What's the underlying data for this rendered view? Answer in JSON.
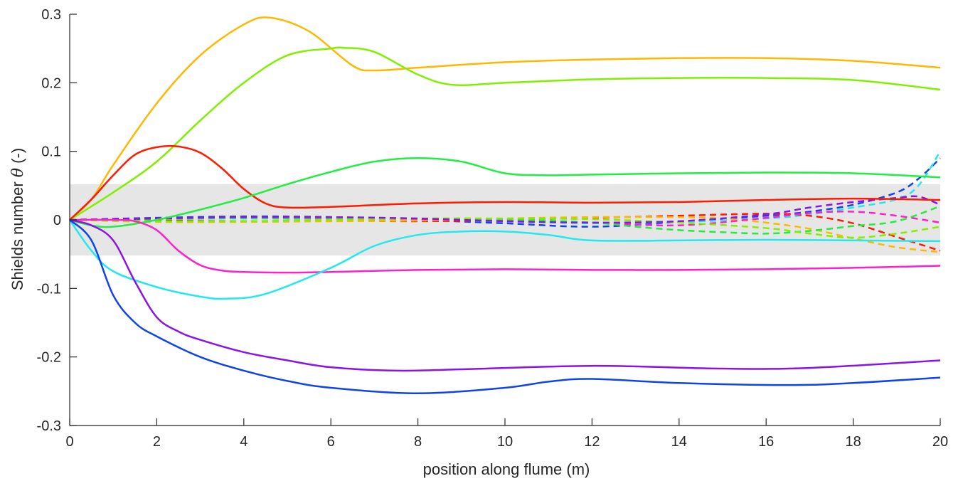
{
  "chart_data": {
    "type": "line",
    "xlabel": "position along flume (m)",
    "ylabel_prefix": "Shields number ",
    "ylabel_symbol": "θ",
    "ylabel_suffix": " (-)",
    "xlim": [
      0,
      20
    ],
    "ylim": [
      -0.3,
      0.3
    ],
    "xticks": [
      0,
      2,
      4,
      6,
      8,
      10,
      12,
      14,
      16,
      18,
      20
    ],
    "yticks": [
      -0.3,
      -0.2,
      -0.1,
      0,
      0.1,
      0.2,
      0.3
    ],
    "xtick_labels": [
      "0",
      "2",
      "4",
      "6",
      "8",
      "10",
      "12",
      "14",
      "16",
      "18",
      "20"
    ],
    "ytick_labels": [
      "-0.3",
      "-0.2",
      "-0.1",
      "0",
      "0.1",
      "0.2",
      "0.3"
    ],
    "grid": false,
    "shaded_band": {
      "y_low": -0.052,
      "y_high": 0.052,
      "color": "#e6e6e6"
    },
    "series": [
      {
        "color": "#ffb800",
        "style": "solid",
        "x": [
          0,
          0.5,
          1,
          2,
          3,
          4,
          4.6,
          5.5,
          6.5,
          7,
          8,
          10,
          12,
          14,
          16,
          18,
          20
        ],
        "y": [
          0,
          0.03,
          0.08,
          0.17,
          0.24,
          0.285,
          0.295,
          0.275,
          0.225,
          0.218,
          0.222,
          0.23,
          0.234,
          0.236,
          0.236,
          0.232,
          0.222
        ]
      },
      {
        "color": "#80f000",
        "style": "solid",
        "x": [
          0,
          1,
          2,
          3,
          4,
          5,
          6,
          6.3,
          7,
          8,
          8.8,
          10,
          12,
          14,
          16,
          18,
          20
        ],
        "y": [
          0,
          0.04,
          0.085,
          0.145,
          0.2,
          0.24,
          0.25,
          0.251,
          0.245,
          0.212,
          0.197,
          0.2,
          0.205,
          0.207,
          0.207,
          0.204,
          0.19
        ]
      },
      {
        "color": "#ff1a00",
        "style": "solid",
        "x": [
          0,
          0.5,
          1,
          1.5,
          2,
          2.5,
          3,
          3.5,
          4,
          4.5,
          5,
          6,
          8,
          10,
          12,
          14,
          16,
          18,
          20
        ],
        "y": [
          0,
          0.03,
          0.065,
          0.095,
          0.106,
          0.107,
          0.098,
          0.075,
          0.045,
          0.024,
          0.018,
          0.019,
          0.024,
          0.026,
          0.025,
          0.026,
          0.029,
          0.031,
          0.029
        ]
      },
      {
        "color": "#20ee40",
        "style": "solid",
        "x": [
          0,
          0.5,
          1,
          2,
          3,
          4,
          5,
          6,
          7,
          8,
          9,
          10,
          11,
          12,
          14,
          16,
          18,
          20
        ],
        "y": [
          0,
          -0.008,
          -0.01,
          0,
          0.015,
          0.032,
          0.052,
          0.07,
          0.085,
          0.09,
          0.085,
          0.068,
          0.065,
          0.066,
          0.068,
          0.069,
          0.068,
          0.062
        ]
      },
      {
        "color": "#ff20c8",
        "style": "solid",
        "x": [
          0,
          1,
          1.5,
          2,
          2.5,
          3,
          3.5,
          4,
          5,
          6,
          8,
          10,
          12,
          14,
          16,
          18,
          20
        ],
        "y": [
          0,
          0,
          -0.002,
          -0.015,
          -0.045,
          -0.066,
          -0.074,
          -0.076,
          -0.077,
          -0.076,
          -0.073,
          -0.072,
          -0.073,
          -0.073,
          -0.072,
          -0.07,
          -0.067
        ]
      },
      {
        "color": "#22e8f0",
        "style": "solid",
        "x": [
          0,
          0.5,
          1,
          2,
          3,
          3.6,
          4.5,
          6,
          7,
          8,
          9,
          10,
          11,
          12,
          14,
          16,
          18,
          20
        ],
        "y": [
          0,
          -0.045,
          -0.075,
          -0.098,
          -0.112,
          -0.115,
          -0.108,
          -0.07,
          -0.038,
          -0.022,
          -0.017,
          -0.017,
          -0.022,
          -0.03,
          -0.03,
          -0.029,
          -0.03,
          -0.031
        ]
      },
      {
        "color": "#8a14e8",
        "style": "solid",
        "x": [
          0,
          0.5,
          1,
          1.5,
          2,
          2.5,
          3,
          4,
          5,
          6,
          7.5,
          9,
          12,
          15,
          17,
          20
        ],
        "y": [
          0,
          -0.008,
          -0.03,
          -0.09,
          -0.142,
          -0.163,
          -0.175,
          -0.193,
          -0.205,
          -0.215,
          -0.22,
          -0.218,
          -0.213,
          -0.217,
          -0.216,
          -0.205
        ]
      },
      {
        "color": "#1044e8",
        "style": "solid",
        "x": [
          0,
          0.5,
          1,
          1.5,
          2,
          3,
          4,
          5,
          6,
          8,
          10,
          11,
          12,
          14,
          16.5,
          18,
          20
        ],
        "y": [
          0,
          -0.03,
          -0.11,
          -0.15,
          -0.17,
          -0.2,
          -0.22,
          -0.235,
          -0.245,
          -0.253,
          -0.245,
          -0.236,
          -0.232,
          -0.238,
          -0.241,
          -0.238,
          -0.23
        ]
      },
      {
        "color": "#1044e8",
        "style": "dashed",
        "x": [
          0,
          2,
          4,
          6,
          8,
          10,
          12,
          14,
          16,
          17,
          18,
          19,
          19.5,
          20
        ],
        "y": [
          0,
          0.003,
          0.005,
          0.004,
          0,
          -0.005,
          -0.01,
          -0.003,
          0.006,
          0.012,
          0.022,
          0.04,
          0.06,
          0.09
        ]
      },
      {
        "color": "#22e8f0",
        "style": "dashed",
        "x": [
          0,
          2,
          4,
          6,
          8,
          10,
          12,
          14,
          16,
          17,
          18,
          19,
          19.5,
          20
        ],
        "y": [
          0,
          0.001,
          0.002,
          0.001,
          0,
          -0.002,
          -0.005,
          -0.003,
          0.002,
          0.008,
          0.018,
          0.03,
          0.05,
          0.1
        ]
      },
      {
        "color": "#ff1a00",
        "style": "dashed",
        "x": [
          0,
          2,
          4,
          6,
          8,
          10,
          12,
          14,
          16,
          17,
          18,
          19,
          20
        ],
        "y": [
          0,
          -0.001,
          -0.002,
          -0.001,
          -0.002,
          0,
          0.003,
          0.006,
          0.009,
          0.006,
          -0.005,
          -0.025,
          -0.045
        ]
      },
      {
        "color": "#ffb800",
        "style": "dashed",
        "x": [
          0,
          2,
          4,
          6,
          8,
          10,
          12,
          14,
          15,
          16,
          17,
          18,
          19,
          20
        ],
        "y": [
          0,
          -0.003,
          -0.003,
          -0.002,
          -0.001,
          0.002,
          0.004,
          0.004,
          0.002,
          -0.004,
          -0.013,
          -0.027,
          -0.04,
          -0.047
        ]
      },
      {
        "color": "#ff20c8",
        "style": "dashed",
        "x": [
          0,
          2,
          4,
          6,
          8,
          10,
          12,
          14,
          16,
          17,
          18,
          19,
          20
        ],
        "y": [
          0,
          0.002,
          0.003,
          0.002,
          0.001,
          -0.001,
          -0.004,
          -0.008,
          0.003,
          0.01,
          0.012,
          0.006,
          -0.004
        ]
      },
      {
        "color": "#20ee40",
        "style": "dashed",
        "x": [
          0,
          2,
          4,
          6,
          8,
          10,
          12,
          13,
          14,
          15,
          16,
          17,
          18,
          19,
          20
        ],
        "y": [
          0,
          0.001,
          0.003,
          0.003,
          0.002,
          0.001,
          -0.004,
          -0.01,
          -0.015,
          -0.018,
          -0.02,
          -0.016,
          -0.009,
          -0.002,
          0.02
        ]
      },
      {
        "color": "#80f000",
        "style": "dashed",
        "x": [
          0,
          2,
          4,
          6,
          8,
          10,
          12,
          14,
          16,
          17,
          18,
          19,
          20
        ],
        "y": [
          0,
          -0.002,
          -0.002,
          0,
          0.002,
          0.002,
          0.001,
          -0.004,
          -0.012,
          -0.02,
          -0.026,
          -0.02,
          -0.01
        ]
      },
      {
        "color": "#8a14e8",
        "style": "dashed",
        "x": [
          0,
          2,
          4,
          6,
          8,
          10,
          12,
          14,
          16,
          17,
          18,
          19,
          19.5,
          20
        ],
        "y": [
          0,
          0.002,
          0.004,
          0.004,
          0.002,
          -0.002,
          -0.004,
          -0.002,
          0.008,
          0.018,
          0.026,
          0.032,
          0.034,
          0.022
        ]
      }
    ]
  }
}
